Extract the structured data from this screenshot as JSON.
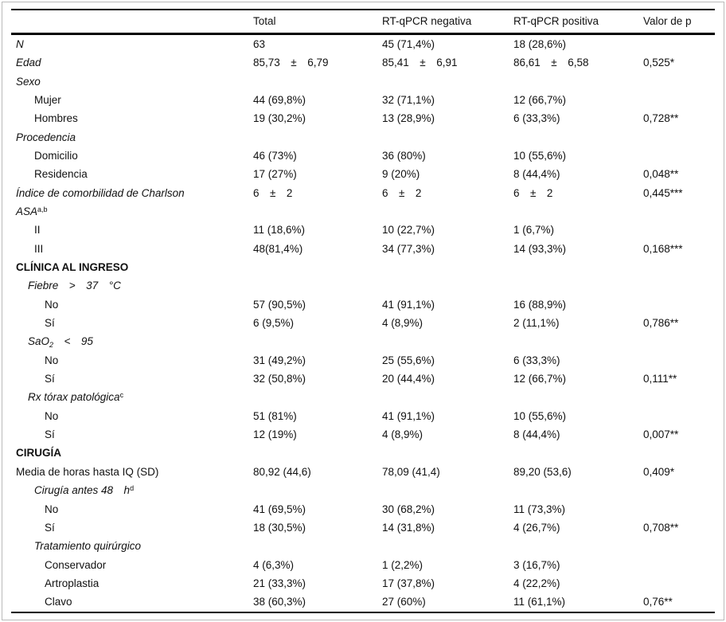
{
  "page": {
    "background": "#ffffff",
    "frame_border": "#b9b9b9",
    "text_color": "#111111",
    "rule_color": "#000000"
  },
  "table": {
    "columns": [
      {
        "label": ""
      },
      {
        "label": "Total"
      },
      {
        "label": "RT-qPCR negativa"
      },
      {
        "label": "RT-qPCR positiva"
      },
      {
        "label": "Valor de p"
      }
    ],
    "rows": [
      {
        "label": "N",
        "style": "italic",
        "indent": 0,
        "cells": [
          "63",
          "45 (71,4%)",
          "18 (28,6%)",
          ""
        ]
      },
      {
        "label": "Edad",
        "style": "italic",
        "indent": 0,
        "cells": [
          "85,73  ±  6,79",
          "85,41  ±  6,91",
          "86,61  ±  6,58",
          "0,525*"
        ]
      },
      {
        "label": "Sexo",
        "style": "italic",
        "indent": 0,
        "cells": [
          "",
          "",
          "",
          ""
        ]
      },
      {
        "label": "Mujer",
        "style": "normal",
        "indent": 2,
        "cells": [
          "44 (69,8%)",
          "32 (71,1%)",
          "12 (66,7%)",
          ""
        ]
      },
      {
        "label": "Hombres",
        "style": "normal",
        "indent": 2,
        "cells": [
          "19 (30,2%)",
          "13 (28,9%)",
          "6 (33,3%)",
          "0,728**"
        ]
      },
      {
        "label": "Procedencia",
        "style": "italic",
        "indent": 0,
        "cells": [
          "",
          "",
          "",
          ""
        ]
      },
      {
        "label": "Domicilio",
        "style": "normal",
        "indent": 2,
        "cells": [
          "46 (73%)",
          "36 (80%)",
          "10 (55,6%)",
          ""
        ]
      },
      {
        "label": "Residencia",
        "style": "normal",
        "indent": 2,
        "cells": [
          "17 (27%)",
          "9 (20%)",
          "8 (44,4%)",
          "0,048**"
        ]
      },
      {
        "label": "Índice de comorbilidad de Charlson",
        "style": "italic",
        "indent": 0,
        "cells": [
          "6  ±  2",
          "6  ±  2",
          "6  ±  2",
          "0,445***"
        ]
      },
      {
        "label": "ASA",
        "sup": "a,b",
        "style": "italic",
        "indent": 0,
        "cells": [
          "",
          "",
          "",
          ""
        ]
      },
      {
        "label": "II",
        "style": "normal",
        "indent": 2,
        "cells": [
          "11 (18,6%)",
          "10 (22,7%)",
          "1 (6,7%)",
          ""
        ]
      },
      {
        "label": "III",
        "style": "normal",
        "indent": 2,
        "cells": [
          "48(81,4%)",
          "34 (77,3%)",
          "14 (93,3%)",
          "0,168***"
        ]
      },
      {
        "label": "CLÍNICA AL INGRESO",
        "style": "bold",
        "indent": 0,
        "cells": [
          "",
          "",
          "",
          ""
        ]
      },
      {
        "label": "Fiebre  >  37  °C",
        "style": "italic",
        "indent": 1,
        "cells": [
          "",
          "",
          "",
          ""
        ]
      },
      {
        "label": "No",
        "style": "normal",
        "indent": 3,
        "cells": [
          "57 (90,5%)",
          "41 (91,1%)",
          "16 (88,9%)",
          ""
        ]
      },
      {
        "label": "Sí",
        "style": "normal",
        "indent": 3,
        "cells": [
          "6 (9,5%)",
          "4 (8,9%)",
          "2 (11,1%)",
          "0,786**"
        ]
      },
      {
        "label": "SaO",
        "sub": "2",
        "after": "  <  95",
        "style": "italic",
        "indent": 1,
        "cells": [
          "",
          "",
          "",
          ""
        ]
      },
      {
        "label": "No",
        "style": "normal",
        "indent": 3,
        "cells": [
          "31 (49,2%)",
          "25 (55,6%)",
          "6 (33,3%)",
          ""
        ]
      },
      {
        "label": "Sí",
        "style": "normal",
        "indent": 3,
        "cells": [
          "32 (50,8%)",
          "20 (44,4%)",
          "12 (66,7%)",
          "0,111**"
        ]
      },
      {
        "label": "Rx tórax patológica",
        "sup": "c",
        "style": "italic",
        "indent": 1,
        "cells": [
          "",
          "",
          "",
          ""
        ]
      },
      {
        "label": "No",
        "style": "normal",
        "indent": 3,
        "cells": [
          "51 (81%)",
          "41 (91,1%)",
          "10 (55,6%)",
          ""
        ]
      },
      {
        "label": "Sí",
        "style": "normal",
        "indent": 3,
        "cells": [
          "12 (19%)",
          "4 (8,9%)",
          "8 (44,4%)",
          "0,007**"
        ]
      },
      {
        "label": "CIRUGÍA",
        "style": "bold",
        "indent": 0,
        "cells": [
          "",
          "",
          "",
          ""
        ]
      },
      {
        "label": "Media de horas hasta IQ (SD)",
        "style": "normal",
        "indent": 0,
        "cells": [
          "80,92 (44,6)",
          "78,09 (41,4)",
          "89,20 (53,6)",
          "0,409*"
        ]
      },
      {
        "label": "Cirugía antes 48  h",
        "sup": "d",
        "style": "italic",
        "indent": 2,
        "cells": [
          "",
          "",
          "",
          ""
        ]
      },
      {
        "label": "No",
        "style": "normal",
        "indent": 3,
        "cells": [
          "41 (69,5%)",
          "30 (68,2%)",
          "11 (73,3%)",
          ""
        ]
      },
      {
        "label": "Sí",
        "style": "normal",
        "indent": 3,
        "cells": [
          "18 (30,5%)",
          "14 (31,8%)",
          "4 (26,7%)",
          "0,708**"
        ]
      },
      {
        "label": "Tratamiento quirúrgico",
        "style": "italic",
        "indent": 2,
        "cells": [
          "",
          "",
          "",
          ""
        ]
      },
      {
        "label": "Conservador",
        "style": "normal",
        "indent": 3,
        "cells": [
          "4 (6,3%)",
          "1 (2,2%)",
          "3 (16,7%)",
          ""
        ]
      },
      {
        "label": "Artroplastia",
        "style": "normal",
        "indent": 3,
        "cells": [
          "21 (33,3%)",
          "17 (37,8%)",
          "4 (22,2%)",
          ""
        ]
      },
      {
        "label": "Clavo",
        "style": "normal",
        "indent": 3,
        "cells": [
          "38 (60,3%)",
          "27 (60%)",
          "11 (61,1%)",
          "0,76**"
        ]
      }
    ]
  }
}
